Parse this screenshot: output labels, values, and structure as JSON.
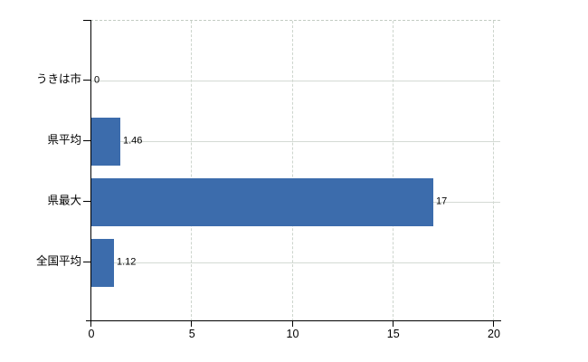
{
  "chart_data": {
    "type": "bar",
    "orientation": "horizontal",
    "title": "",
    "xlabel": "",
    "ylabel": "",
    "categories": [
      "うきは市",
      "県平均",
      "県最大",
      "全国平均"
    ],
    "values": [
      0,
      1.46,
      17,
      1.12
    ],
    "value_labels": [
      "0",
      "1.46",
      "17",
      "1.12"
    ],
    "xlim": [
      0,
      20
    ],
    "x_ticks": [
      0,
      5,
      10,
      15,
      20
    ],
    "x_tick_labels": [
      "0",
      "5",
      "10",
      "15",
      "20"
    ],
    "grid": "on",
    "legend": "none",
    "colors": {
      "bar": "#3c6cac",
      "gridline": "#cdd5cd",
      "axis": "#000000",
      "text": "#000000",
      "background": "#ffffff"
    }
  }
}
